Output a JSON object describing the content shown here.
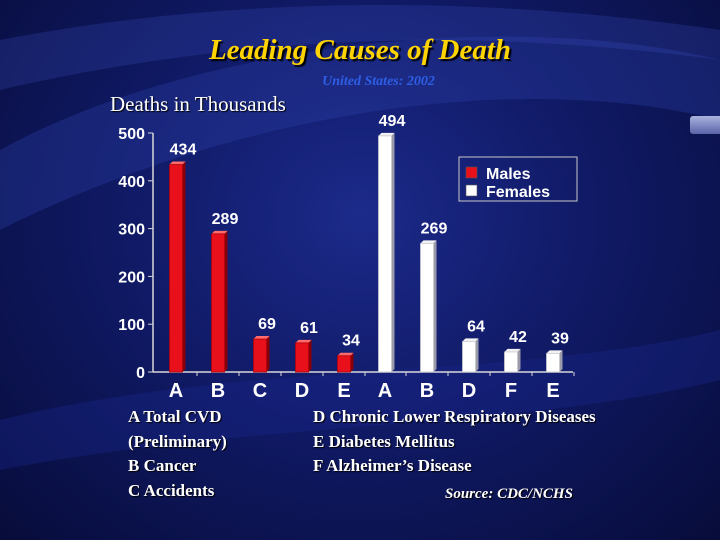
{
  "title": "Leading Causes of Death",
  "subtitle": "United States: 2002",
  "ylabel": "Deaths in Thousands",
  "colors": {
    "males": "#e8101a",
    "females": "#ffffff",
    "title": "#ffd400"
  },
  "legend": [
    {
      "label": "Males",
      "color": "#e8101a"
    },
    {
      "label": "Females",
      "color": "#ffffff"
    }
  ],
  "notes_left": [
    "A Total CVD",
    "(Preliminary)",
    "B Cancer",
    "C Accidents"
  ],
  "notes_right": [
    "D Chronic Lower Respiratory Diseases",
    "E Diabetes Mellitus",
    "F Alzheimer’s Disease"
  ],
  "source": "Source: CDC/NCHS",
  "chart_data": {
    "type": "bar",
    "ylabel": "Deaths in Thousands",
    "ylim": [
      0,
      500
    ],
    "yticks": [
      0,
      100,
      200,
      300,
      400,
      500
    ],
    "legend_position": "top-right",
    "series": [
      {
        "name": "Males",
        "color": "#e8101a",
        "categories": [
          "A",
          "B",
          "C",
          "D",
          "E"
        ],
        "values": [
          434,
          289,
          69,
          61,
          34
        ]
      },
      {
        "name": "Females",
        "color": "#ffffff",
        "categories": [
          "A",
          "B",
          "D",
          "F",
          "E"
        ],
        "values": [
          494,
          269,
          64,
          42,
          39
        ]
      }
    ]
  }
}
